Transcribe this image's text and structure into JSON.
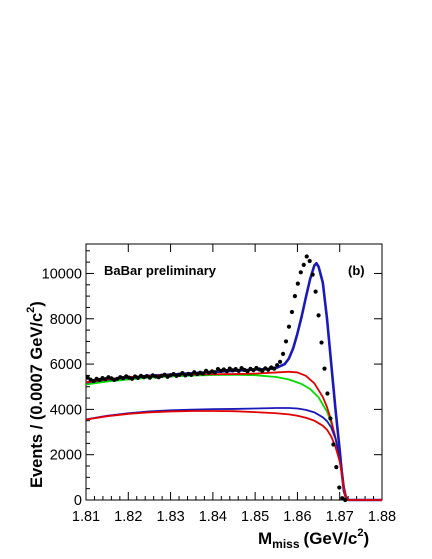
{
  "chart_data": {
    "type": "line",
    "annotations": {
      "experiment": "BaBar preliminary",
      "panel": "(b)"
    },
    "x_axis": {
      "label_main": "M",
      "label_sub": "miss",
      "label_unit": "(GeV/c",
      "label_sup": "2",
      "label_close": ")",
      "range": [
        1.81,
        1.88
      ],
      "ticks": [
        "1.81",
        "1.82",
        "1.83",
        "1.84",
        "1.85",
        "1.86",
        "1.87",
        "1.88"
      ]
    },
    "y_axis": {
      "label_main": "Events / (0.0007 GeV/c",
      "label_sup": "2",
      "label_close": ")",
      "range": [
        0,
        11300
      ],
      "ticks": [
        "0",
        "2000",
        "4000",
        "6000",
        "8000",
        "10000"
      ]
    },
    "series": [
      {
        "kind": "points",
        "color": "#000000",
        "x": [
          1.8104,
          1.8111,
          1.8118,
          1.8125,
          1.8132,
          1.8139,
          1.8146,
          1.8153,
          1.816,
          1.8167,
          1.8174,
          1.8181,
          1.8188,
          1.8195,
          1.8202,
          1.8209,
          1.8216,
          1.8223,
          1.823,
          1.8237,
          1.8244,
          1.8251,
          1.8258,
          1.8265,
          1.8272,
          1.8279,
          1.8286,
          1.8293,
          1.83,
          1.8307,
          1.8314,
          1.8321,
          1.8328,
          1.8335,
          1.8342,
          1.8349,
          1.8356,
          1.8363,
          1.837,
          1.8377,
          1.8384,
          1.8391,
          1.8398,
          1.8405,
          1.8412,
          1.8419,
          1.8426,
          1.8433,
          1.844,
          1.8447,
          1.8454,
          1.8461,
          1.8468,
          1.8475,
          1.8482,
          1.8489,
          1.8496,
          1.8503,
          1.851,
          1.8517,
          1.8524,
          1.8531,
          1.8538,
          1.8545,
          1.8552,
          1.8559,
          1.8566,
          1.8573,
          1.858,
          1.8587,
          1.8594,
          1.8601,
          1.8608,
          1.8615,
          1.8622,
          1.8629,
          1.8636,
          1.8643,
          1.865,
          1.8657,
          1.8664,
          1.8671,
          1.8678,
          1.8685,
          1.8692,
          1.8699,
          1.8706,
          1.8713
        ],
        "y": [
          5400,
          5310,
          5250,
          5350,
          5300,
          5380,
          5330,
          5420,
          5370,
          5300,
          5350,
          5420,
          5380,
          5460,
          5400,
          5350,
          5450,
          5390,
          5480,
          5420,
          5470,
          5400,
          5500,
          5450,
          5420,
          5480,
          5530,
          5440,
          5500,
          5560,
          5480,
          5530,
          5600,
          5500,
          5570,
          5520,
          5640,
          5560,
          5620,
          5580,
          5700,
          5620,
          5680,
          5640,
          5780,
          5700,
          5760,
          5690,
          5800,
          5720,
          5780,
          5700,
          5820,
          5740,
          5680,
          5790,
          5730,
          5830,
          5760,
          5700,
          5810,
          5750,
          5850,
          5800,
          5950,
          6100,
          6450,
          7000,
          7650,
          8300,
          9000,
          9550,
          10050,
          10380,
          10750,
          10550,
          9950,
          9200,
          8150,
          6950,
          5800,
          4700,
          3600,
          2450,
          1450,
          550,
          80,
          0
        ]
      },
      {
        "kind": "line",
        "color": "#1a1ab8",
        "x": [
          1.81,
          1.815,
          1.82,
          1.825,
          1.83,
          1.835,
          1.84,
          1.845,
          1.85,
          1.853,
          1.855,
          1.857,
          1.858,
          1.859,
          1.86,
          1.861,
          1.862,
          1.863,
          1.864,
          1.8645,
          1.865,
          1.866,
          1.867,
          1.868,
          1.869,
          1.87,
          1.8705,
          1.871,
          1.8715,
          1.872,
          1.875,
          1.88
        ],
        "y": [
          5150,
          5310,
          5400,
          5480,
          5540,
          5590,
          5650,
          5700,
          5760,
          5780,
          5830,
          6000,
          6250,
          6700,
          7350,
          8100,
          8950,
          9750,
          10350,
          10450,
          10300,
          9600,
          8000,
          6000,
          4000,
          2200,
          1200,
          400,
          100,
          0,
          0,
          0
        ]
      },
      {
        "kind": "line",
        "color": "#00dd00",
        "x": [
          1.81,
          1.815,
          1.82,
          1.825,
          1.83,
          1.835,
          1.84,
          1.845,
          1.85,
          1.855,
          1.858,
          1.861,
          1.863,
          1.865,
          1.867,
          1.868,
          1.869,
          1.87,
          1.8705,
          1.871,
          1.8715,
          1.872,
          1.875,
          1.88
        ],
        "y": [
          5100,
          5230,
          5320,
          5400,
          5450,
          5490,
          5520,
          5530,
          5510,
          5430,
          5320,
          5120,
          4900,
          4530,
          3900,
          3400,
          2750,
          1850,
          1200,
          500,
          100,
          0,
          0,
          0
        ]
      },
      {
        "kind": "line",
        "color": "#e00000",
        "x": [
          1.81,
          1.815,
          1.82,
          1.825,
          1.83,
          1.835,
          1.84,
          1.845,
          1.85,
          1.855,
          1.858,
          1.86,
          1.862,
          1.864,
          1.866,
          1.867,
          1.868,
          1.869,
          1.87,
          1.8705,
          1.871,
          1.8715,
          1.872,
          1.875,
          1.88
        ],
        "y": [
          5200,
          5330,
          5420,
          5480,
          5520,
          5540,
          5550,
          5560,
          5580,
          5630,
          5660,
          5630,
          5480,
          5150,
          4550,
          4100,
          3500,
          2750,
          1800,
          1200,
          500,
          150,
          0,
          0,
          0
        ]
      },
      {
        "kind": "line",
        "color": "#1a1ab8",
        "x": [
          1.81,
          1.815,
          1.82,
          1.825,
          1.83,
          1.835,
          1.84,
          1.845,
          1.85,
          1.855,
          1.858,
          1.86,
          1.862,
          1.864,
          1.866,
          1.867,
          1.868,
          1.869,
          1.87,
          1.8705,
          1.871,
          1.8715,
          1.872,
          1.875,
          1.88
        ],
        "y": [
          3560,
          3720,
          3830,
          3910,
          3960,
          3990,
          4010,
          4020,
          4040,
          4060,
          4060,
          4040,
          3980,
          3870,
          3650,
          3480,
          3200,
          2700,
          1950,
          1350,
          600,
          150,
          0,
          0,
          0
        ]
      },
      {
        "kind": "line",
        "color": "#e00000",
        "x": [
          1.81,
          1.815,
          1.82,
          1.825,
          1.83,
          1.835,
          1.84,
          1.845,
          1.85,
          1.855,
          1.858,
          1.86,
          1.862,
          1.864,
          1.866,
          1.867,
          1.868,
          1.869,
          1.87,
          1.8705,
          1.871,
          1.8715,
          1.872,
          1.875,
          1.88
        ],
        "y": [
          3550,
          3700,
          3800,
          3870,
          3910,
          3930,
          3930,
          3920,
          3880,
          3830,
          3780,
          3720,
          3630,
          3500,
          3280,
          3100,
          2800,
          2350,
          1700,
          1150,
          500,
          120,
          0,
          0,
          0
        ]
      }
    ]
  }
}
